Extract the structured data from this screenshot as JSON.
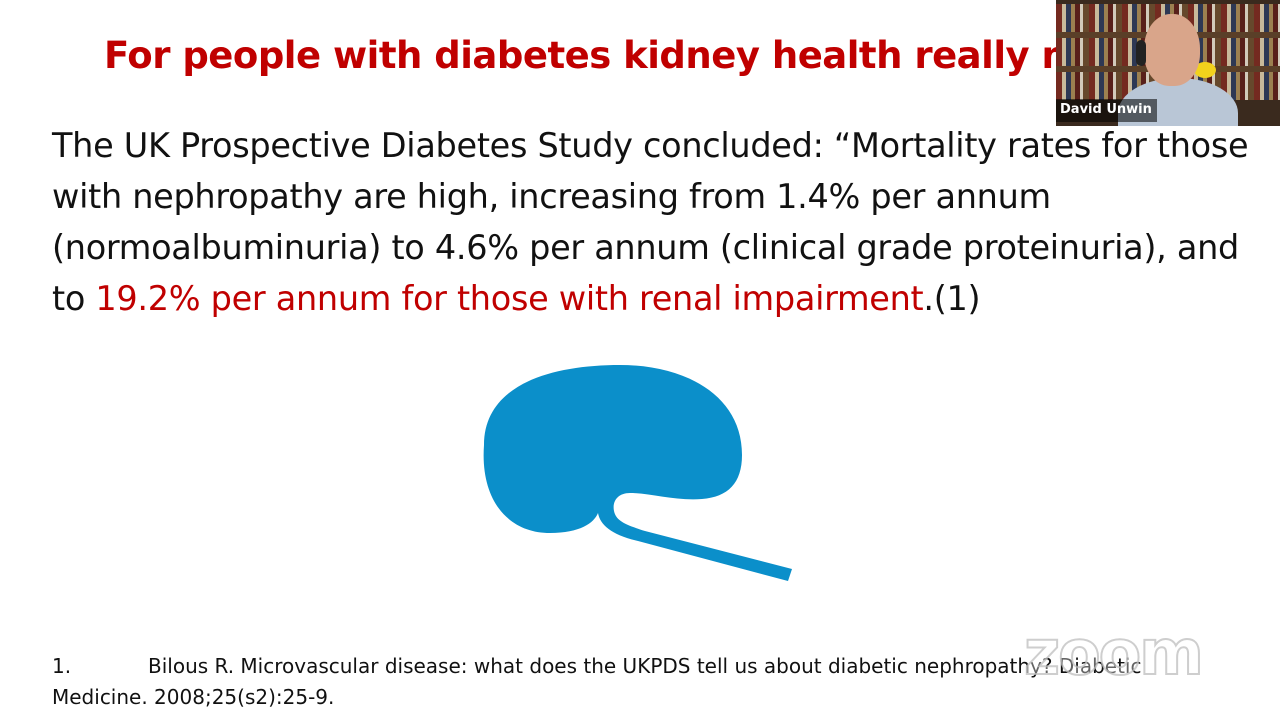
{
  "slide": {
    "title": "For people with diabetes kidney health really m",
    "body": {
      "part1": "The UK Prospective Diabetes Study concluded: “Mortality rates for those with nephropathy are high, increasing from 1.4% per annum (normoalbuminuria) to 4.6% per annum (clinical grade proteinuria), and to ",
      "highlight": "19.2% per annum for those with renal impairment",
      "part2": ".(1)"
    },
    "kidney_icon": "kidney-icon",
    "reference": {
      "number": "1.",
      "text": "Bilous R. Microvascular disease: what does the UKPDS tell us about diabetic nephropathy? Diabetic Medicine. 2008;25(s2):25-9."
    }
  },
  "video": {
    "participant_name": "David Unwin"
  },
  "watermark": {
    "text": "zoom"
  },
  "colors": {
    "title_red": "#c00000",
    "body_text": "#111111",
    "kidney_blue": "#0b8fca",
    "background": "#ffffff"
  }
}
